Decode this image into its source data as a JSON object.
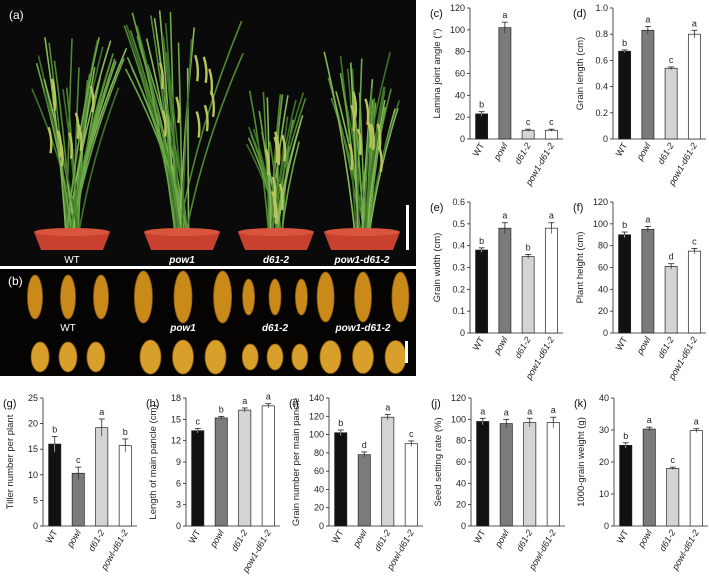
{
  "panel_a": {
    "label": "(a)",
    "names": [
      "WT",
      "pow1",
      "d61-2",
      "pow1-d61-2"
    ]
  },
  "panel_b": {
    "label": "(b)",
    "names": [
      "WT",
      "pow1",
      "d61-2",
      "pow1-d61-2"
    ]
  },
  "colors": {
    "bars": [
      "#111111",
      "#7b7b7b",
      "#d4d4d4",
      "#ffffff"
    ],
    "photo_bg": "#0a0a0a",
    "photo_bg_b": "#060403",
    "pot": "#c8412e",
    "plant_green": "#5e9a3c",
    "grain_gold": "#c98a1a"
  },
  "chart_data": [
    {
      "id": "c",
      "panel_label": "(c)",
      "type": "bar",
      "ylabel": "Lamina joint angle (°)",
      "categories": [
        "WT",
        "powl",
        "d61-2",
        "pow1-d61-2"
      ],
      "values": [
        23,
        102,
        8,
        8
      ],
      "errors": [
        2,
        5,
        1,
        1
      ],
      "letters": [
        "b",
        "a",
        "c",
        "c"
      ],
      "ylim": [
        0,
        120
      ],
      "yticks": [
        "0",
        "20",
        "40",
        "60",
        "80",
        "100",
        "120"
      ]
    },
    {
      "id": "d",
      "panel_label": "(d)",
      "type": "bar",
      "ylabel": "Grain length (cm)",
      "categories": [
        "WT",
        "powl",
        "d61-2",
        "pow1-d61-2"
      ],
      "values": [
        0.67,
        0.83,
        0.54,
        0.8
      ],
      "errors": [
        0.01,
        0.03,
        0.01,
        0.03
      ],
      "letters": [
        "b",
        "a",
        "c",
        "a"
      ],
      "ylim": [
        0,
        1.0
      ],
      "yticks": [
        "0",
        "0.2",
        "0.4",
        "0.6",
        "0.8",
        "1.0"
      ]
    },
    {
      "id": "e",
      "panel_label": "(e)",
      "type": "bar",
      "ylabel": "Grain width (cm)",
      "categories": [
        "WT",
        "powl",
        "d61-2",
        "pow1-d61-2"
      ],
      "values": [
        0.38,
        0.48,
        0.35,
        0.48
      ],
      "errors": [
        0.01,
        0.025,
        0.01,
        0.025
      ],
      "letters": [
        "b",
        "a",
        "b",
        "a"
      ],
      "ylim": [
        0,
        0.6
      ],
      "yticks": [
        "0",
        "0.1",
        "0.2",
        "0.3",
        "0.4",
        "0.5",
        "0.6"
      ]
    },
    {
      "id": "f",
      "panel_label": "(f)",
      "type": "bar",
      "ylabel": "Plant height (cm)",
      "categories": [
        "WT",
        "powl",
        "d61-2",
        "pow1-d61-2"
      ],
      "values": [
        90,
        95,
        61,
        75
      ],
      "errors": [
        2.5,
        2.5,
        2.5,
        2.5
      ],
      "letters": [
        "b",
        "a",
        "d",
        "c"
      ],
      "ylim": [
        0,
        120
      ],
      "yticks": [
        "0",
        "20",
        "40",
        "60",
        "80",
        "100",
        "120"
      ]
    },
    {
      "id": "g",
      "panel_label": "(g)",
      "type": "bar",
      "ylabel": "Tiller number per plant",
      "categories": [
        "WT",
        "powl",
        "d61-2",
        "powl-d61-2"
      ],
      "values": [
        16,
        10.3,
        19.2,
        15.7
      ],
      "errors": [
        1.5,
        1.2,
        1.7,
        1.3
      ],
      "letters": [
        "b",
        "c",
        "a",
        "b"
      ],
      "ylim": [
        0,
        25
      ],
      "yticks": [
        "0",
        "5",
        "10",
        "15",
        "20",
        "25"
      ]
    },
    {
      "id": "h",
      "panel_label": "(h)",
      "type": "bar",
      "ylabel": "Length of main pancle (cm)",
      "categories": [
        "WT",
        "powl",
        "d61-2",
        "pow1-d61-2"
      ],
      "values": [
        13.4,
        15.2,
        16.3,
        16.9
      ],
      "errors": [
        0.3,
        0.2,
        0.3,
        0.3
      ],
      "letters": [
        "c",
        "b",
        "a",
        "a"
      ],
      "ylim": [
        0,
        18
      ],
      "yticks": [
        "0",
        "3",
        "6",
        "9",
        "12",
        "15",
        "18"
      ]
    },
    {
      "id": "i",
      "panel_label": "(i)",
      "type": "bar",
      "ylabel": "Grain number per main pancle",
      "categories": [
        "WT",
        "powl",
        "d61-2",
        "powl-d61-2"
      ],
      "values": [
        102,
        78,
        119,
        90
      ],
      "errors": [
        3,
        3,
        3,
        3
      ],
      "letters": [
        "b",
        "d",
        "a",
        "c"
      ],
      "ylim": [
        0,
        140
      ],
      "yticks": [
        "0",
        "20",
        "40",
        "60",
        "80",
        "100",
        "120",
        "140"
      ]
    },
    {
      "id": "j",
      "panel_label": "(j)",
      "type": "bar",
      "ylabel": "Seed setting rate (%)",
      "categories": [
        "WT",
        "powl",
        "d61-2",
        "powl-d61-2"
      ],
      "values": [
        98,
        96,
        97,
        97
      ],
      "errors": [
        3,
        4,
        4,
        5
      ],
      "letters": [
        "a",
        "a",
        "a",
        "a"
      ],
      "ylim": [
        0,
        120
      ],
      "yticks": [
        "0",
        "20",
        "40",
        "60",
        "80",
        "100",
        "120"
      ]
    },
    {
      "id": "k",
      "panel_label": "(k)",
      "type": "bar",
      "ylabel": "1000-grain weight (g)",
      "categories": [
        "WT",
        "powl",
        "d61-2",
        "powl-d61-2"
      ],
      "values": [
        25.2,
        30.3,
        18.0,
        29.8
      ],
      "errors": [
        0.8,
        0.6,
        0.4,
        0.6
      ],
      "letters": [
        "b",
        "a",
        "c",
        "a"
      ],
      "ylim": [
        0,
        40
      ],
      "yticks": [
        "0",
        "10",
        "20",
        "30",
        "40"
      ]
    }
  ]
}
